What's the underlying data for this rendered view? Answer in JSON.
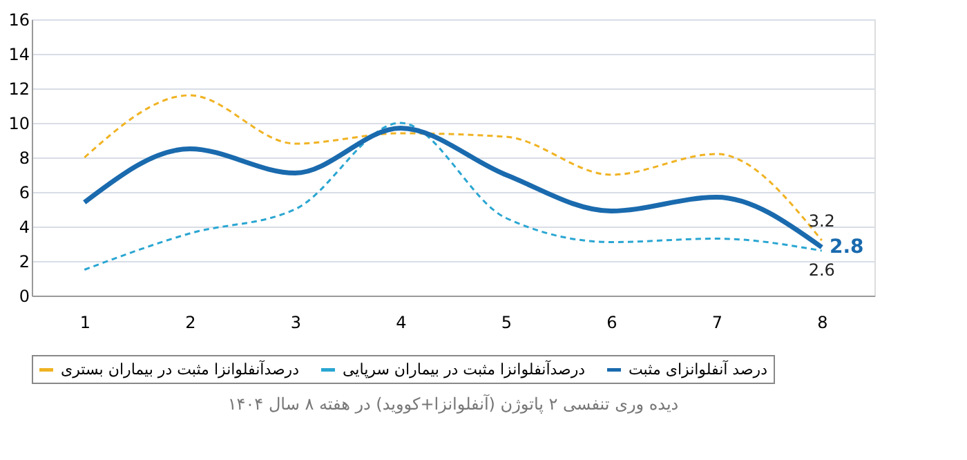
{
  "chart_data": {
    "type": "line",
    "categories": [
      "1",
      "2",
      "3",
      "4",
      "5",
      "6",
      "7",
      "8"
    ],
    "series": [
      {
        "name": "درصدآنفلوانزا مثبت در بیماران بستری",
        "color": "#f0b323",
        "line_style": "dashed",
        "values": [
          8.0,
          11.6,
          8.8,
          9.4,
          9.2,
          7.0,
          8.2,
          3.2
        ],
        "value_labels": [
          null,
          null,
          null,
          null,
          null,
          null,
          null,
          "3.2"
        ]
      },
      {
        "name": "درصدآنفلوانزا مثبت در بیماران سرپایی",
        "color": "#2aa6d2",
        "line_style": "dashed",
        "values": [
          1.5,
          3.6,
          5.0,
          10.0,
          4.5,
          3.1,
          3.3,
          2.6
        ],
        "value_labels": [
          null,
          null,
          null,
          null,
          null,
          null,
          null,
          "2.6"
        ]
      },
      {
        "name": "درصد آنفلوانزای مثبت",
        "color": "#1a6aae",
        "line_style": "solid",
        "values": [
          5.4,
          8.5,
          7.1,
          9.7,
          7.0,
          4.9,
          5.7,
          2.8
        ],
        "value_labels": [
          null,
          null,
          null,
          null,
          null,
          null,
          null,
          "2.8"
        ]
      }
    ],
    "ylim": [
      0,
      16
    ],
    "yticks": [
      0,
      2,
      4,
      6,
      8,
      10,
      12,
      14,
      16
    ],
    "grid": "y",
    "legend": "bottom",
    "marker": "none",
    "annotations": [
      "دیده وری تنفسی ۲ پاتوژن (آنفلوانزا+کووید) در هفته ۸ سال ۱۴۰۴"
    ]
  }
}
